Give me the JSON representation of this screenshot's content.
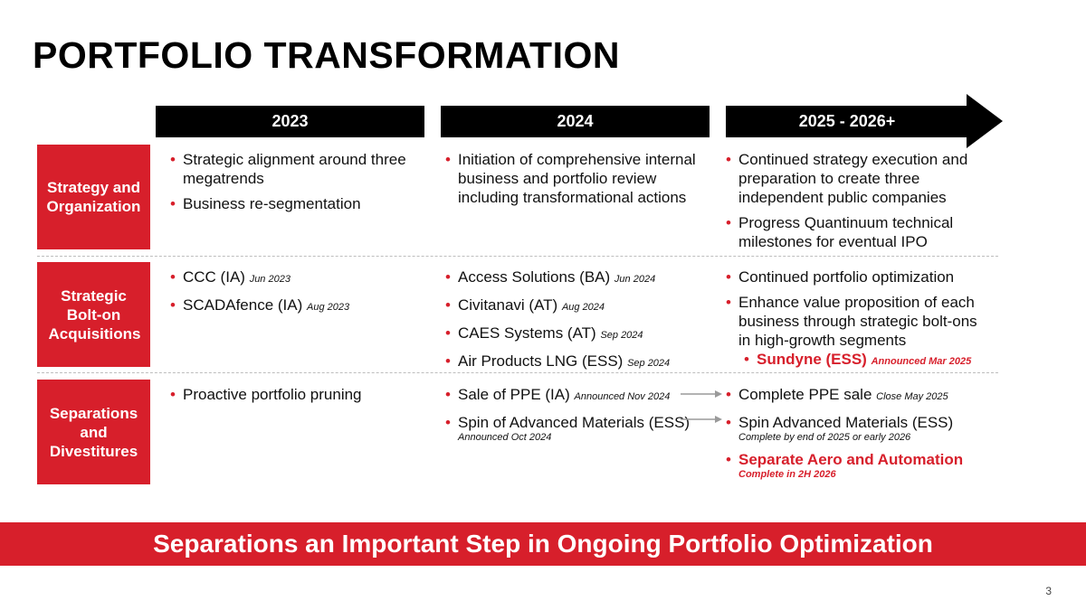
{
  "title": "PORTFOLIO TRANSFORMATION",
  "years": [
    "2023",
    "2024",
    "2025 - 2026+"
  ],
  "rows": {
    "strategy": {
      "label": "Strategy and Organization",
      "c2023": [
        {
          "text": "Strategic alignment around three megatrends"
        },
        {
          "text": "Business re-segmentation"
        }
      ],
      "c2024": [
        {
          "text": "Initiation of comprehensive internal business and portfolio review including transformational actions"
        }
      ],
      "c2025": [
        {
          "text": "Continued strategy execution and preparation to create three independent public companies"
        },
        {
          "text": "Progress Quantinuum technical milestones for eventual IPO"
        }
      ]
    },
    "acquisitions": {
      "label": "Strategic Bolt-on Acquisitions",
      "c2023": [
        {
          "text": "CCC (IA)",
          "note": "Jun 2023"
        },
        {
          "text": "SCADAfence (IA)",
          "note": "Aug 2023"
        }
      ],
      "c2024": [
        {
          "text": "Access Solutions (BA)",
          "note": "Jun 2024"
        },
        {
          "text": "Civitanavi (AT)",
          "note": "Aug 2024"
        },
        {
          "text": "CAES Systems (AT)",
          "note": "Sep 2024"
        },
        {
          "text": "Air Products LNG (ESS)",
          "note": "Sep 2024"
        }
      ],
      "c2025": [
        {
          "text": "Continued portfolio optimization"
        },
        {
          "text": "Enhance value proposition of each business through strategic bolt-ons in high-growth segments"
        },
        {
          "text": "Sundyne (ESS)",
          "note": "Announced Mar 2025"
        }
      ]
    },
    "separations": {
      "label": "Separations and Divestitures",
      "c2023": [
        {
          "text": "Proactive portfolio pruning"
        }
      ],
      "c2024": [
        {
          "text": "Sale of PPE (IA)",
          "note": "Announced Nov 2024"
        },
        {
          "text": "Spin of Advanced Materials (ESS)",
          "note": "Announced Oct 2024"
        }
      ],
      "c2025": [
        {
          "text": "Complete PPE sale",
          "note": "Close May 2025"
        },
        {
          "text": "Spin Advanced Materials (ESS)",
          "note": "Complete by end of 2025 or early 2026"
        },
        {
          "text": "Separate Aero and Automation",
          "note": "Complete in 2H 2026"
        }
      ]
    }
  },
  "banner": "Separations an Important Step in Ongoing Portfolio Optimization",
  "page_number": "3",
  "colors": {
    "accent": "#d71f2b",
    "header": "#000000"
  }
}
